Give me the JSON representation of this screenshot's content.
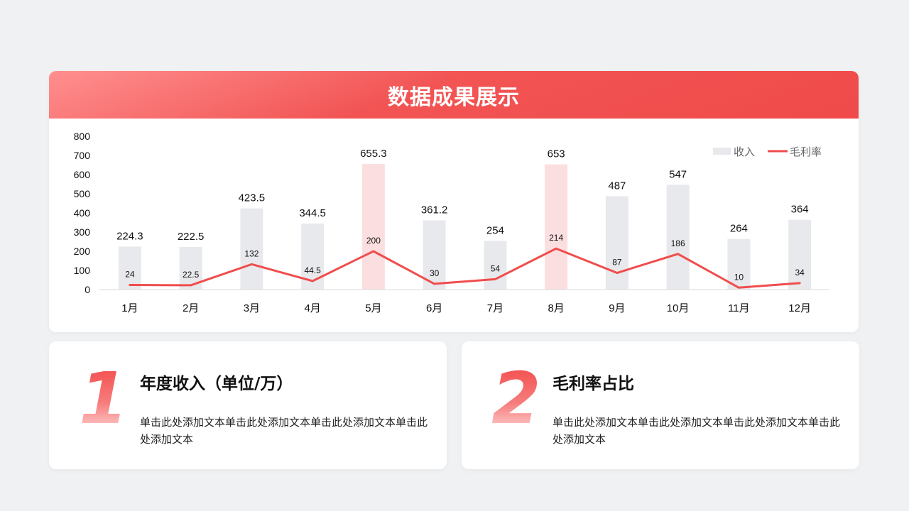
{
  "header": {
    "title": "数据成果展示"
  },
  "chart_data": {
    "type": "bar",
    "categories": [
      "1月",
      "2月",
      "3月",
      "4月",
      "5月",
      "6月",
      "7月",
      "8月",
      "9月",
      "10月",
      "11月",
      "12月"
    ],
    "series": [
      {
        "name": "收入",
        "type": "bar",
        "values": [
          224.3,
          222.5,
          423.5,
          344.5,
          655.3,
          361.2,
          254,
          653,
          487,
          547,
          264,
          364
        ]
      },
      {
        "name": "毛利率",
        "type": "line",
        "values": [
          24,
          22.5,
          132,
          44.5,
          200,
          30,
          54,
          214,
          87,
          186,
          10,
          34
        ]
      }
    ],
    "highlighted_categories": [
      "5月",
      "8月"
    ],
    "ylim": [
      0,
      800
    ],
    "yticks": [
      0,
      100,
      200,
      300,
      400,
      500,
      600,
      700,
      800
    ],
    "legend_position": "top-right",
    "grid": false,
    "colors": {
      "bar": "#e8e9ec",
      "bar_highlight": "#fbdfe0",
      "line": "#f04d4d"
    }
  },
  "cards": [
    {
      "number": "1",
      "heading": "年度收入（单位/万）",
      "body": "单击此处添加文本单击此处添加文本单击此处添加文本单击此处添加文本"
    },
    {
      "number": "2",
      "heading": "毛利率占比",
      "body": "单击此处添加文本单击此处添加文本单击此处添加文本单击此处添加文本"
    }
  ]
}
